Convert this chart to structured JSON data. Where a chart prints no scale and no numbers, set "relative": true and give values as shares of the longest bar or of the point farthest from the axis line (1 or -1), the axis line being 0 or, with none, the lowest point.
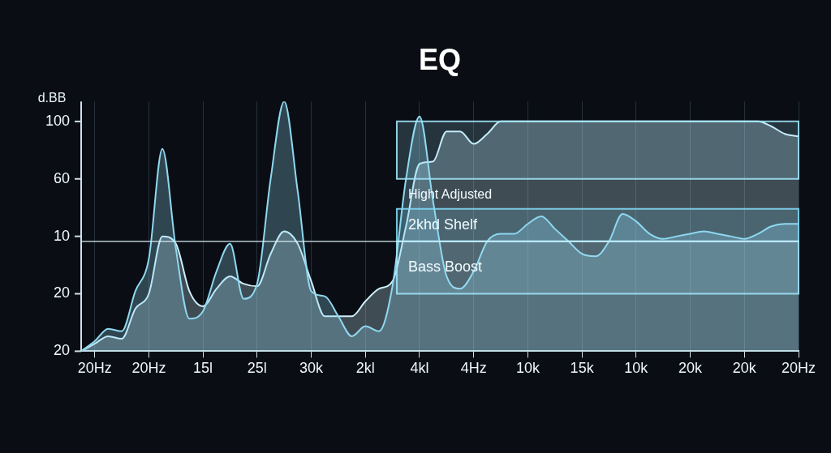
{
  "chart_data": {
    "type": "area",
    "title": "EQ",
    "ylabel": "d.BB",
    "relative": true,
    "categories": [
      null,
      "20Hz",
      null,
      null,
      null,
      "20Hz",
      null,
      null,
      null,
      "15l",
      null,
      null,
      null,
      "25l",
      null,
      null,
      null,
      "30k",
      null,
      null,
      null,
      "2kl",
      null,
      null,
      null,
      "4kl",
      null,
      null,
      null,
      "4Hz",
      null,
      null,
      null,
      "10k",
      null,
      null,
      null,
      "15k",
      null,
      null,
      null,
      "10k",
      null,
      null,
      null,
      "20k",
      null,
      null,
      null,
      "20k",
      null,
      null,
      null,
      "20Hz"
    ],
    "grid": "x",
    "marker": "none",
    "series": [
      {
        "color": "#8fd8f0",
        "values": [
          0,
          0.04,
          0.09,
          0.08,
          0.24,
          0.37,
          0.81,
          0.41,
          0.13,
          0.16,
          0.32,
          0.43,
          0.21,
          0.27,
          0.69,
          1,
          0.64,
          0.24,
          0.22,
          0.14,
          0.06,
          0.1,
          0.08,
          0.26,
          0.69,
          0.94,
          0.6,
          0.3,
          0.25,
          0.32,
          0.44,
          0.47,
          0.47,
          0.51,
          0.54,
          0.49,
          0.44,
          0.39,
          0.38,
          0.44,
          0.55,
          0.52,
          0.47,
          0.45,
          0.46,
          0.47,
          0.48,
          0.47,
          0.46,
          0.45,
          0.47,
          0.5,
          0.51,
          0.51
        ]
      },
      {
        "color": "#cdeefa",
        "values": [
          0,
          0.03,
          0.06,
          0.05,
          0.17,
          0.23,
          0.46,
          0.43,
          0.24,
          0.18,
          0.25,
          0.3,
          0.27,
          0.26,
          0.39,
          0.48,
          0.43,
          0.28,
          0.14,
          0.14,
          0.14,
          0.2,
          0.25,
          0.28,
          0.5,
          0.75,
          0.76,
          0.88,
          0.88,
          0.83,
          0.87,
          0.92,
          0.92,
          0.92,
          0.92,
          0.92,
          0.92,
          0.92,
          0.92,
          0.92,
          0.92,
          0.92,
          0.92,
          0.92,
          0.92,
          0.92,
          0.92,
          0.92,
          0.92,
          0.92,
          0.92,
          0.9,
          0.87,
          0.86
        ]
      }
    ],
    "bands": [
      {
        "axis": "y",
        "from": 0.69,
        "to": 0.92,
        "color": "#9fe3f7"
      },
      {
        "axis": "y",
        "from": 0.44,
        "to": 0.57,
        "label": "2khd Shelf",
        "color": "#7fd6f2"
      },
      {
        "axis": "y",
        "from": 0.23,
        "to": 0.44,
        "label": "Bass Boost",
        "color": "#9fe3f7"
      }
    ],
    "ref_lines": [
      {
        "axis": "y",
        "value": 0.44,
        "color": "#d8eef5"
      }
    ],
    "annotations": [
      "Hight Adjusted",
      "100",
      "60",
      "10",
      "20",
      "20"
    ]
  }
}
